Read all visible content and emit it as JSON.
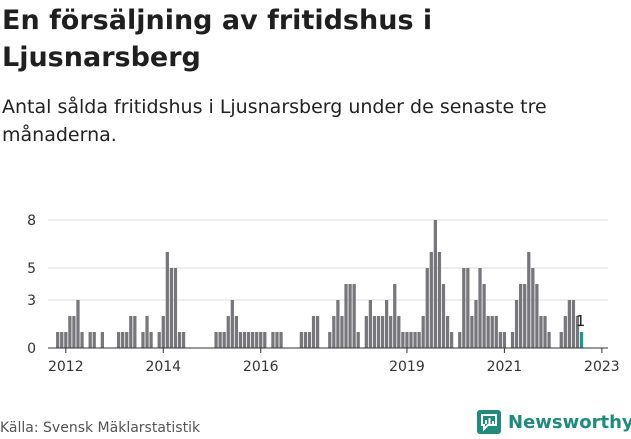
{
  "title": "En försäljning av fritidshus i Ljusnarsberg",
  "subtitle": "Antal sålda fritidshus i Ljusnarsberg under de senaste tre månaderna.",
  "source": "Källa: Svensk Mäklarstatistik",
  "brand": "Newsworthy",
  "colors": {
    "bar": "#77767b",
    "highlight": "#1a9a8c",
    "grid": "#dddddd",
    "brand": "#1c8c7d"
  },
  "chart_data": {
    "type": "bar",
    "x_start_year": 2011.75,
    "y_ticks": [
      0,
      3,
      5,
      8
    ],
    "x_ticks": [
      "2012",
      "2014",
      "2016",
      "2019",
      "2021",
      "2023"
    ],
    "ylim": [
      0,
      9
    ],
    "annotation": "1",
    "values": [
      0,
      1,
      1,
      1,
      2,
      2,
      3,
      1,
      0,
      1,
      1,
      0,
      1,
      0,
      0,
      0,
      1,
      1,
      1,
      2,
      2,
      0,
      1,
      2,
      1,
      0,
      1,
      2,
      6,
      5,
      5,
      1,
      1,
      0,
      0,
      0,
      0,
      0,
      0,
      0,
      1,
      1,
      1,
      2,
      3,
      2,
      1,
      1,
      1,
      1,
      1,
      1,
      1,
      0,
      1,
      1,
      1,
      0,
      0,
      0,
      0,
      1,
      1,
      1,
      2,
      2,
      0,
      0,
      1,
      2,
      3,
      2,
      4,
      4,
      4,
      1,
      0,
      2,
      3,
      2,
      2,
      2,
      3,
      2,
      4,
      2,
      1,
      1,
      1,
      1,
      1,
      2,
      5,
      6,
      8,
      6,
      4,
      2,
      1,
      0,
      1,
      5,
      5,
      2,
      3,
      5,
      4,
      2,
      2,
      2,
      1,
      1,
      0,
      1,
      3,
      4,
      4,
      6,
      5,
      4,
      2,
      2,
      1,
      0,
      0,
      1,
      2,
      3,
      3,
      2,
      1
    ],
    "highlight_last": true
  }
}
